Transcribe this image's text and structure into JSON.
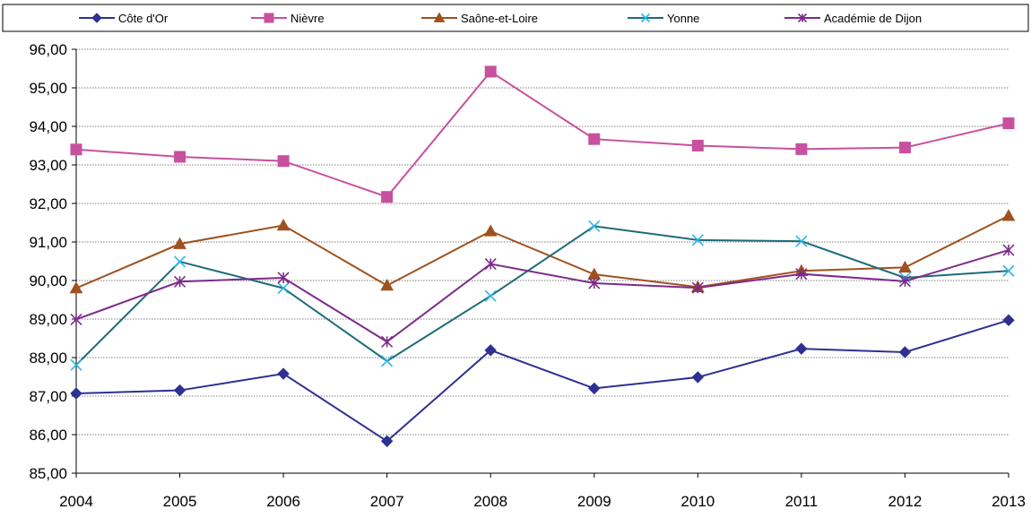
{
  "chart_data": {
    "type": "line",
    "title": "",
    "xlabel": "",
    "ylabel": "",
    "categories": [
      "2004",
      "2005",
      "2006",
      "2007",
      "2008",
      "2009",
      "2010",
      "2011",
      "2012",
      "2013"
    ],
    "ylim": [
      85,
      96
    ],
    "yticks": [
      "85,00",
      "86,00",
      "87,00",
      "88,00",
      "89,00",
      "90,00",
      "91,00",
      "92,00",
      "93,00",
      "94,00",
      "95,00",
      "96,00"
    ],
    "grid": "horizontal dotted",
    "legend_position": "top",
    "series": [
      {
        "name": "Côte d'Or",
        "color": "#2e3092",
        "marker": "diamond",
        "values": [
          87.07,
          87.15,
          87.58,
          85.83,
          88.19,
          87.2,
          87.49,
          88.23,
          88.14,
          88.97
        ]
      },
      {
        "name": "Nièvre",
        "color": "#c8509f",
        "marker": "square",
        "values": [
          93.4,
          93.21,
          93.1,
          92.17,
          95.42,
          93.67,
          93.5,
          93.41,
          93.45,
          94.08
        ]
      },
      {
        "name": "Saône-et-Loire",
        "color": "#a0511f",
        "marker": "triangle",
        "values": [
          89.8,
          90.95,
          91.43,
          89.87,
          91.28,
          90.16,
          89.83,
          90.25,
          90.34,
          91.68
        ]
      },
      {
        "name": "Yonne",
        "color": "#1d6b7a",
        "marker_color": "#29b6e8",
        "legend_label_color": "#5a5aa8",
        "marker": "x",
        "values": [
          87.81,
          90.49,
          89.8,
          87.91,
          89.6,
          91.41,
          91.05,
          91.02,
          90.07,
          90.25
        ]
      },
      {
        "name": "Académie de Dijon",
        "color": "#7d2a8a",
        "marker": "asterisk",
        "values": [
          88.99,
          89.97,
          90.07,
          88.41,
          90.43,
          89.93,
          89.81,
          90.17,
          89.98,
          90.79
        ]
      }
    ]
  }
}
